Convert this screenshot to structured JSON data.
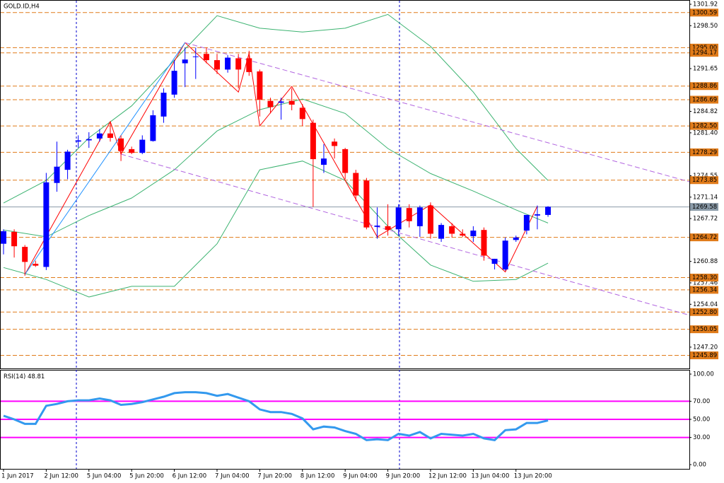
{
  "chart_data": {
    "type": "candlestick",
    "title": "GOLD.ID,H4",
    "xlim": [
      -0.33,
      64.24
    ],
    "xticks": [
      {
        "value": 0,
        "label": "1 Jun 2017"
      },
      {
        "value": 4,
        "label": "2 Jun 12:00"
      },
      {
        "value": 8,
        "label": "5 Jun 04:00"
      },
      {
        "value": 12,
        "label": "5 Jun 20:00"
      },
      {
        "value": 16,
        "label": "6 Jun 12:00"
      },
      {
        "value": 20,
        "label": "7 Jun 04:00"
      },
      {
        "value": 24,
        "label": "7 Jun 20:00"
      },
      {
        "value": 28,
        "label": "8 Jun 12:00"
      },
      {
        "value": 32,
        "label": "9 Jun 04:00"
      },
      {
        "value": 36,
        "label": "9 Jun 20:00"
      },
      {
        "value": 40,
        "label": "12 Jun 12:00"
      },
      {
        "value": 44,
        "label": "13 Jun 04:00"
      },
      {
        "value": 48,
        "label": "13 Jun 20:00"
      }
    ],
    "ylim": [
      1243.8,
      1302.6
    ],
    "yticks": [
      {
        "value": 1301.92,
        "label": "1301.92"
      },
      {
        "value": 1298.5,
        "label": "1298.50"
      },
      {
        "value": 1291.65,
        "label": "1291.65"
      },
      {
        "value": 1284.82,
        "label": "1284.82"
      },
      {
        "value": 1281.4,
        "label": "1281.40"
      },
      {
        "value": 1274.55,
        "label": "1274.55"
      },
      {
        "value": 1271.14,
        "label": "1271.14"
      },
      {
        "value": 1267.72,
        "label": "1267.72"
      },
      {
        "value": 1260.88,
        "label": "1260.88"
      },
      {
        "value": 1257.46,
        "label": "1257.46"
      },
      {
        "value": 1254.04,
        "label": "1254.04"
      },
      {
        "value": 1247.2,
        "label": "1247.20"
      }
    ],
    "up_color": "#0000ff",
    "down_color": "#ff0000",
    "open": [
      1263.7,
      1265.6,
      1263.2,
      1260.5,
      1260,
      1273.4,
      1275.5,
      1280,
      1280.2,
      1280.5,
      1281.3,
      1280.5,
      1278.8,
      1278.2,
      1280.1,
      1284,
      1287.5,
      1292.5,
      1293.5,
      1294,
      1293,
      1291.5,
      1293.3,
      1293.3,
      1291.2,
      1286.5,
      1286.2,
      1286.5,
      1285.4,
      1283,
      1276.3,
      1280,
      1278.8,
      1275,
      1273.8,
      1266.4,
      1266.5,
      1266,
      1269.4,
      1266.5,
      1269.8,
      1264.5,
      1266.5,
      1265.3,
      1264.9,
      1265.9,
      1260.5,
      1259.6,
      1264.3,
      1265.8,
      1268.2,
      1268.3
    ],
    "high": [
      1266,
      1266,
      1263.5,
      1261,
      1275,
      1280,
      1278.7,
      1281,
      1281.5,
      1282,
      1283,
      1281,
      1279.2,
      1281,
      1285,
      1288.5,
      1293,
      1295,
      1295,
      1295,
      1294,
      1293.8,
      1294,
      1294.5,
      1291.5,
      1287,
      1287,
      1288.5,
      1286,
      1283.5,
      1279.6,
      1280.5,
      1279,
      1275.5,
      1274.2,
      1269.5,
      1270,
      1270,
      1270,
      1269.8,
      1270.3,
      1267,
      1267,
      1266,
      1266.5,
      1266.3,
      1261.3,
      1264.7,
      1265,
      1268,
      1269.8,
      1269.7
    ],
    "low": [
      1262,
      1261.5,
      1258.6,
      1260,
      1259.5,
      1272,
      1274,
      1279,
      1279,
      1280,
      1280,
      1276.9,
      1278,
      1278,
      1280,
      1283,
      1287,
      1288.7,
      1290,
      1292.5,
      1290.8,
      1291,
      1288.5,
      1290.5,
      1284,
      1284.5,
      1283.5,
      1285,
      1282.5,
      1269.6,
      1275,
      1277.3,
      1274,
      1270.5,
      1266,
      1264.5,
      1265,
      1265,
      1266.3,
      1264.8,
      1264.5,
      1264,
      1264.7,
      1264.8,
      1264,
      1261,
      1259.6,
      1259.4,
      1264,
      1265.2,
      1266,
      1268
    ],
    "close": [
      1265.7,
      1263.3,
      1260.8,
      1260.2,
      1273.5,
      1276,
      1278.4,
      1280.2,
      1280.4,
      1281.3,
      1280.6,
      1278.5,
      1278.2,
      1280.3,
      1284.2,
      1287.8,
      1291.3,
      1293.1,
      1293.6,
      1293,
      1291.5,
      1293.4,
      1291.5,
      1291.1,
      1286.7,
      1285.5,
      1286.4,
      1285.9,
      1283.6,
      1277.2,
      1277.3,
      1279.3,
      1275,
      1271.4,
      1266.3,
      1266.6,
      1265.9,
      1269.5,
      1267.3,
      1269.5,
      1265.3,
      1266.7,
      1265.3,
      1265,
      1265.8,
      1261.8,
      1261.3,
      1264.2,
      1264.7,
      1268.3,
      1268.4,
      1269.6
    ],
    "overlays": [
      {
        "color": "#3cb371",
        "style": "solid",
        "x": [
          0,
          4,
          8,
          12,
          16,
          20,
          24,
          28,
          32,
          36,
          40,
          44,
          48,
          51
        ],
        "values": [
          1270.2,
          1273.8,
          1280.6,
          1285.7,
          1293.0,
          1300.1,
          1298.1,
          1297.5,
          1298.1,
          1300.3,
          1295.2,
          1287.9,
          1278.9,
          1273.8
        ]
      },
      {
        "color": "#3cb371",
        "style": "solid",
        "x": [
          0,
          4,
          8,
          12,
          16,
          20,
          24,
          28,
          32,
          36,
          40,
          44,
          48,
          51
        ],
        "values": [
          1265.9,
          1264.8,
          1268.2,
          1271.0,
          1275.5,
          1281.7,
          1285.1,
          1286.8,
          1284.5,
          1278.9,
          1274.9,
          1272.1,
          1269.1,
          1267.0
        ]
      },
      {
        "color": "#3cb371",
        "style": "solid",
        "x": [
          0,
          4,
          8,
          12,
          16,
          20,
          24,
          28,
          32,
          36,
          40,
          44,
          48,
          51
        ],
        "values": [
          1259.9,
          1258.0,
          1255.2,
          1256.9,
          1256.9,
          1263.7,
          1275.5,
          1276.9,
          1273.8,
          1266.5,
          1260.3,
          1257.7,
          1258.0,
          1260.6
        ]
      },
      {
        "color": "#ff0000",
        "style": "solid",
        "x": [
          2,
          10,
          11,
          17,
          22,
          23,
          24,
          27,
          35,
          40,
          47,
          50
        ],
        "values": [
          1258.8,
          1283.2,
          1278.0,
          1295.8,
          1287.9,
          1294.1,
          1282.5,
          1288.8,
          1264.8,
          1269.9,
          1259.2,
          1269.7
        ]
      },
      {
        "color": "#1e90ff",
        "style": "solid",
        "x": [
          2,
          17
        ],
        "values": [
          1258.8,
          1295.8
        ]
      },
      {
        "color": "#b266e0",
        "style": "dashed",
        "x": [
          17,
          64.24
        ],
        "values": [
          1295.8,
          1273.6
        ]
      },
      {
        "color": "#b266e0",
        "style": "dashed",
        "x": [
          11,
          64.24
        ],
        "values": [
          1278.0,
          1252.3
        ]
      }
    ],
    "level_color": "#e07b1a",
    "levels": [
      {
        "value": 1300.59,
        "label": "1300.59"
      },
      {
        "value": 1295,
        "label": "1295.00"
      },
      {
        "value": 1294.17,
        "label": "1294.17"
      },
      {
        "value": 1288.86,
        "label": "1288.86"
      },
      {
        "value": 1286.69,
        "label": "1286.69"
      },
      {
        "value": 1282.5,
        "label": "1282.50"
      },
      {
        "value": 1278.29,
        "label": "1278.29"
      },
      {
        "value": 1273.85,
        "label": "1273.85"
      },
      {
        "value": 1264.72,
        "label": "1264.72"
      },
      {
        "value": 1258.3,
        "label": "1258.30"
      },
      {
        "value": 1256.34,
        "label": "1256.34"
      },
      {
        "value": 1252.8,
        "label": "1252.80"
      },
      {
        "value": 1250.05,
        "label": "1250.05"
      },
      {
        "value": 1245.89,
        "label": "1245.89"
      }
    ],
    "current_price": 1269.58,
    "indicator": {
      "type": "line",
      "label": "RSI(14)",
      "value": 48.81,
      "color": "#3399ee",
      "ylim": [
        -4.7,
        103.9
      ],
      "yticks": [
        {
          "value": 100,
          "label": "100.00"
        },
        {
          "value": 70,
          "label": "70.00"
        },
        {
          "value": 50,
          "label": "50.00"
        },
        {
          "value": 30,
          "label": "30.00"
        },
        {
          "value": 0,
          "label": "0.00"
        }
      ],
      "levels": [
        70,
        50,
        30
      ],
      "level_color": "#ff00ff",
      "values": [
        54,
        50,
        45,
        45,
        65,
        67,
        70,
        71,
        71,
        73,
        71,
        66,
        67,
        69,
        72,
        75,
        79,
        80,
        80,
        79,
        76,
        78,
        74,
        70,
        61,
        58,
        58,
        56,
        51,
        39,
        42,
        41,
        37,
        34,
        27,
        28,
        27,
        34,
        32,
        36,
        29,
        34,
        33,
        32,
        34,
        29,
        27,
        38,
        39,
        46,
        46,
        48.81
      ]
    }
  }
}
